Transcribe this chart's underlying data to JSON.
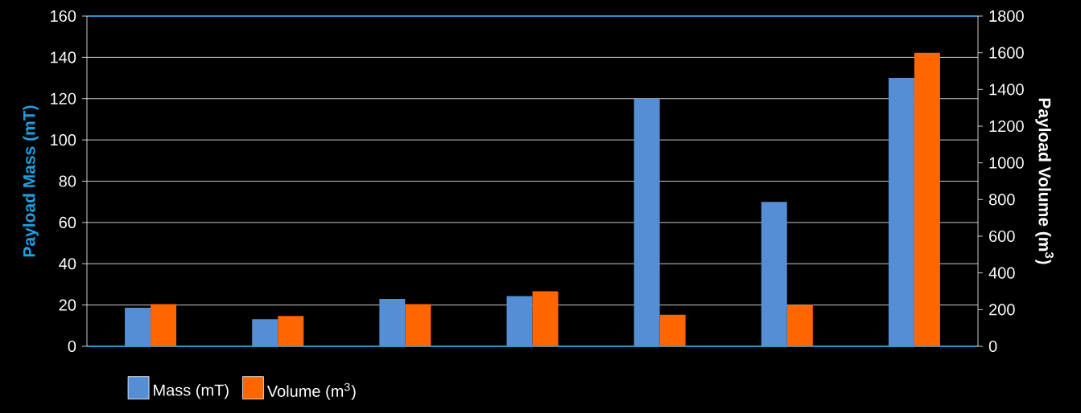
{
  "chart_data": {
    "type": "bar",
    "ylabel": "Payload Mass (mT)",
    "y2label": "Payload Volume (m$^{3}$)",
    "categories": [
      null,
      null,
      null,
      null,
      null,
      null,
      null
    ],
    "series": [
      {
        "name": "Mass (mT)",
        "color": "#558ed5",
        "values": [
          18.7,
          13.1,
          23,
          24.3,
          120,
          70,
          130
        ]
      },
      {
        "name": "Volume (m$^{3}$)",
        "color": "#ff6600",
        "axis": "y2",
        "values": [
          230,
          165,
          230,
          300,
          172,
          225,
          1600
        ]
      }
    ],
    "ylim": [
      0,
      160
    ],
    "yticks": [
      0,
      20,
      40,
      60,
      80,
      100,
      120,
      140,
      160
    ],
    "y2lim": [
      0,
      1800
    ],
    "y2ticks": [
      0,
      200,
      400,
      600,
      800,
      1000,
      1200,
      1400,
      1600,
      1800
    ],
    "grid": "y",
    "legend": "bottom"
  }
}
